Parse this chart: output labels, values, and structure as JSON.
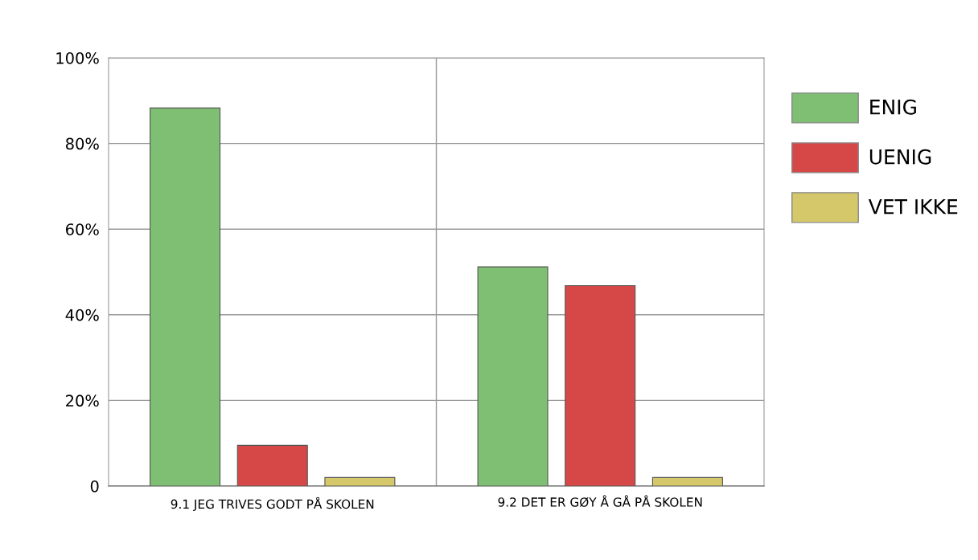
{
  "chart_data": {
    "type": "bar",
    "categories": [
      "9.1 JEG TRIVES GODT PÅ SKOLEN",
      "9.2 DET ER GØY Å GÅ PÅ SKOLEN"
    ],
    "series": [
      {
        "name": "ENIG",
        "color": "#7fbf73",
        "values": [
          88.3,
          51.2
        ]
      },
      {
        "name": "UENIG",
        "color": "#d64848",
        "values": [
          9.5,
          46.8
        ]
      },
      {
        "name": "VET IKKE",
        "color": "#d4c86a",
        "values": [
          2.0,
          2.0
        ]
      }
    ],
    "ylim": [
      0,
      100
    ],
    "yticks": [
      0,
      {
        "value": 20,
        "label": "20%"
      },
      {
        "value": 40,
        "label": "40%"
      },
      {
        "value": 60,
        "label": "60%"
      },
      {
        "value": 80,
        "label": "80%"
      },
      {
        "value": 100,
        "label": "100%"
      }
    ],
    "grid": true,
    "legend": "right"
  }
}
